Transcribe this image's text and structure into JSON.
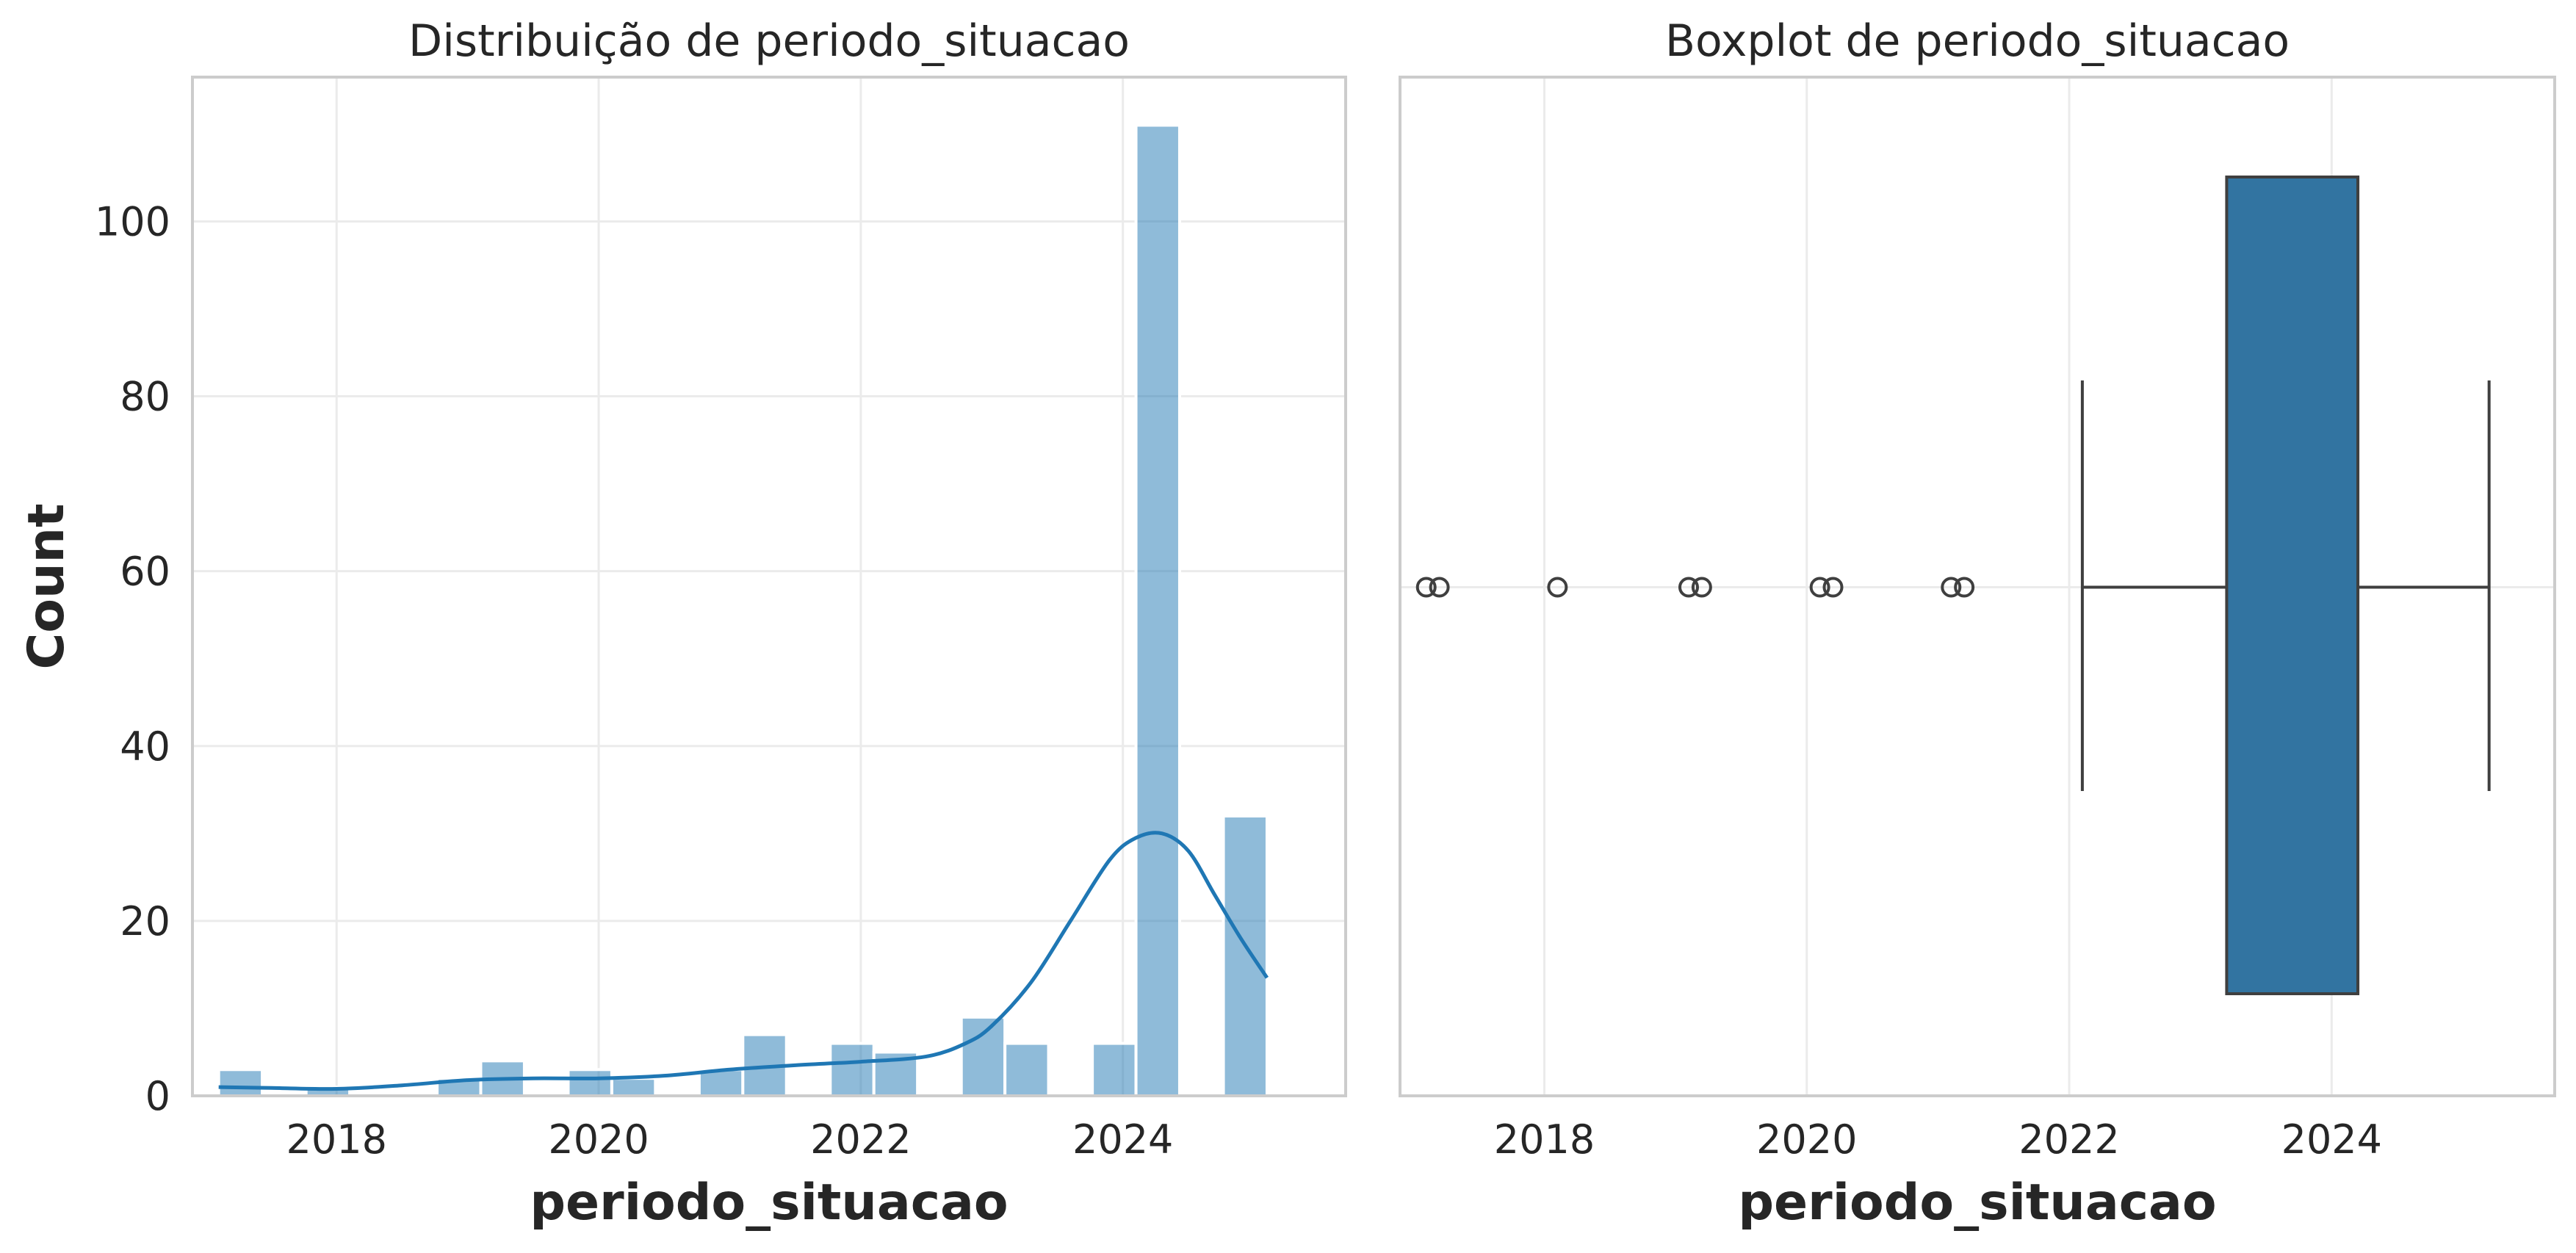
{
  "chart_data": [
    {
      "type": "histogram",
      "title": "Distribuição de periodo_situacao",
      "xlabel": "periodo_situacao",
      "ylabel": "Count",
      "xlim": [
        2016.9,
        2025.7
      ],
      "ylim": [
        0,
        116.5
      ],
      "xticks": [
        2018,
        2020,
        2022,
        2024
      ],
      "yticks": [
        0,
        20,
        40,
        60,
        80,
        100
      ],
      "grid": true,
      "color": "#1f77b4",
      "bins": [
        {
          "x0": 2017.1,
          "x1": 2017.433,
          "count": 3
        },
        {
          "x0": 2017.433,
          "x1": 2017.767,
          "count": 0
        },
        {
          "x0": 2017.767,
          "x1": 2018.1,
          "count": 1
        },
        {
          "x0": 2018.1,
          "x1": 2018.433,
          "count": 0
        },
        {
          "x0": 2018.433,
          "x1": 2018.767,
          "count": 0
        },
        {
          "x0": 2018.767,
          "x1": 2019.1,
          "count": 2
        },
        {
          "x0": 2019.1,
          "x1": 2019.433,
          "count": 4
        },
        {
          "x0": 2019.433,
          "x1": 2019.767,
          "count": 0
        },
        {
          "x0": 2019.767,
          "x1": 2020.1,
          "count": 3
        },
        {
          "x0": 2020.1,
          "x1": 2020.433,
          "count": 2
        },
        {
          "x0": 2020.433,
          "x1": 2020.767,
          "count": 0
        },
        {
          "x0": 2020.767,
          "x1": 2021.1,
          "count": 3
        },
        {
          "x0": 2021.1,
          "x1": 2021.433,
          "count": 7
        },
        {
          "x0": 2021.433,
          "x1": 2021.767,
          "count": 0
        },
        {
          "x0": 2021.767,
          "x1": 2022.1,
          "count": 6
        },
        {
          "x0": 2022.1,
          "x1": 2022.433,
          "count": 5
        },
        {
          "x0": 2022.433,
          "x1": 2022.767,
          "count": 0
        },
        {
          "x0": 2022.767,
          "x1": 2023.1,
          "count": 9
        },
        {
          "x0": 2023.1,
          "x1": 2023.433,
          "count": 6
        },
        {
          "x0": 2023.433,
          "x1": 2023.767,
          "count": 0
        },
        {
          "x0": 2023.767,
          "x1": 2024.1,
          "count": 6
        },
        {
          "x0": 2024.1,
          "x1": 2024.433,
          "count": 111
        },
        {
          "x0": 2024.433,
          "x1": 2024.767,
          "count": 0
        },
        {
          "x0": 2024.767,
          "x1": 2025.1,
          "count": 32
        }
      ],
      "kde": {
        "x": [
          2017.1,
          2017.5,
          2018.0,
          2018.5,
          2019.0,
          2019.5,
          2020.0,
          2020.5,
          2021.0,
          2021.5,
          2022.0,
          2022.5,
          2022.8,
          2023.0,
          2023.3,
          2023.6,
          2023.9,
          2024.1,
          2024.3,
          2024.5,
          2024.7,
          2024.9,
          2025.1
        ],
        "y": [
          1,
          0.9,
          0.8,
          1.2,
          1.8,
          2.0,
          2.0,
          2.3,
          3.0,
          3.5,
          3.9,
          4.5,
          6.0,
          8.0,
          13.0,
          20.0,
          27.0,
          29.5,
          30.0,
          28.0,
          23.0,
          18.0,
          13.5
        ]
      }
    },
    {
      "type": "boxplot",
      "title": "Boxplot de periodo_situacao",
      "xlabel": "periodo_situacao",
      "xlim": [
        2016.9,
        2025.7
      ],
      "xticks": [
        2018,
        2020,
        2022,
        2024
      ],
      "grid": true,
      "color": "#3274a1",
      "whisker_low": 2022.1,
      "q1": 2023.2,
      "median": 2024.2,
      "q3": 2024.2,
      "whisker_high": 2025.2,
      "outliers": [
        2017.1,
        2017.2,
        2018.1,
        2019.1,
        2019.2,
        2020.1,
        2020.2,
        2021.1,
        2021.2
      ]
    }
  ]
}
